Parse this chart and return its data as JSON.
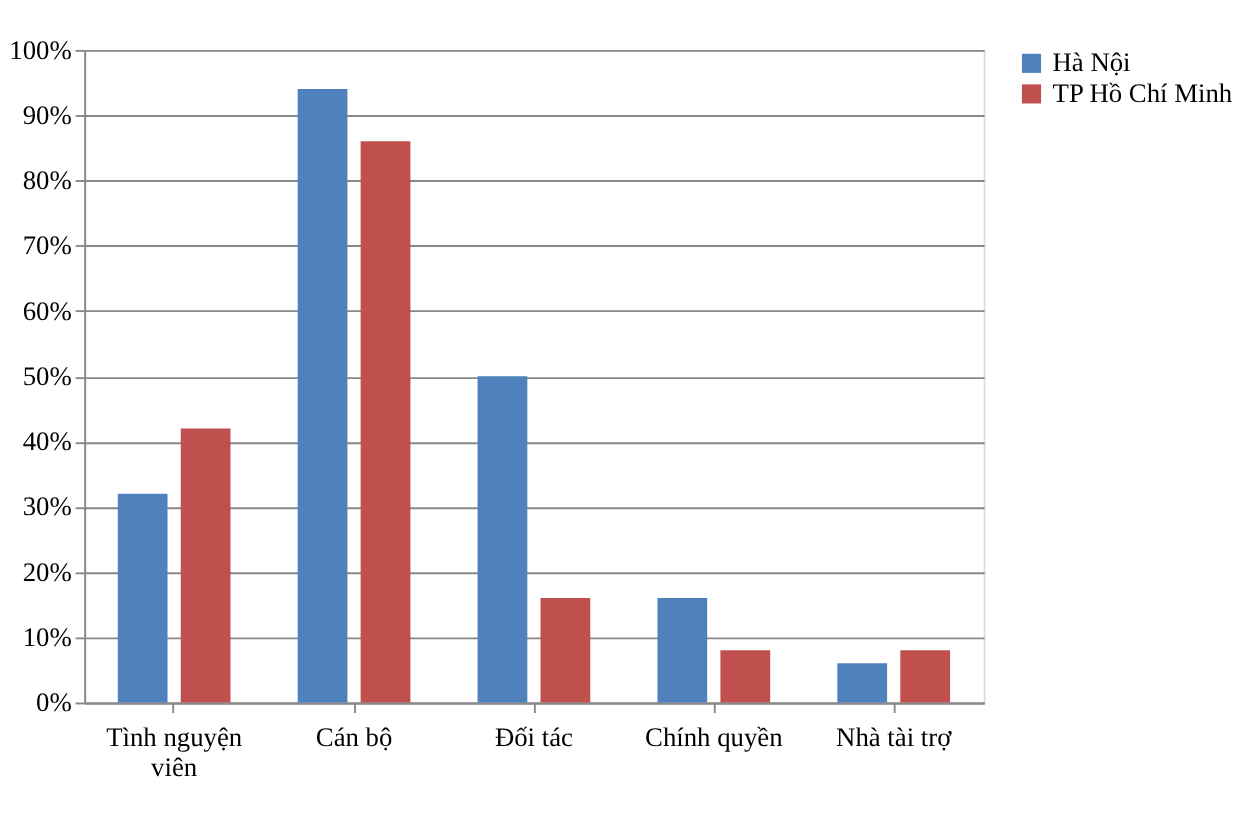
{
  "chart_data": {
    "type": "bar",
    "categories": [
      "Tình nguyện viên",
      "Cán bộ",
      "Đối tác",
      "Chính quyền",
      "Nhà tài trợ"
    ],
    "series": [
      {
        "name": "Hà Nội",
        "color": "#4f81bd",
        "values": [
          32,
          94,
          50,
          16,
          6
        ]
      },
      {
        "name": "TP Hồ Chí Minh",
        "color": "#c0504d",
        "values": [
          42,
          86,
          16,
          8,
          8
        ]
      }
    ],
    "ylim": [
      0,
      100
    ],
    "yticks": [
      {
        "value": 0,
        "label": "0%"
      },
      {
        "value": 10,
        "label": "10%"
      },
      {
        "value": 20,
        "label": "20%"
      },
      {
        "value": 30,
        "label": "30%"
      },
      {
        "value": 40,
        "label": "40%"
      },
      {
        "value": 50,
        "label": "50%"
      },
      {
        "value": 60,
        "label": "60%"
      },
      {
        "value": 70,
        "label": "70%"
      },
      {
        "value": 80,
        "label": "80%"
      },
      {
        "value": 90,
        "label": "90%"
      },
      {
        "value": 100,
        "label": "100%"
      }
    ],
    "grid": "y",
    "legend": "right"
  }
}
